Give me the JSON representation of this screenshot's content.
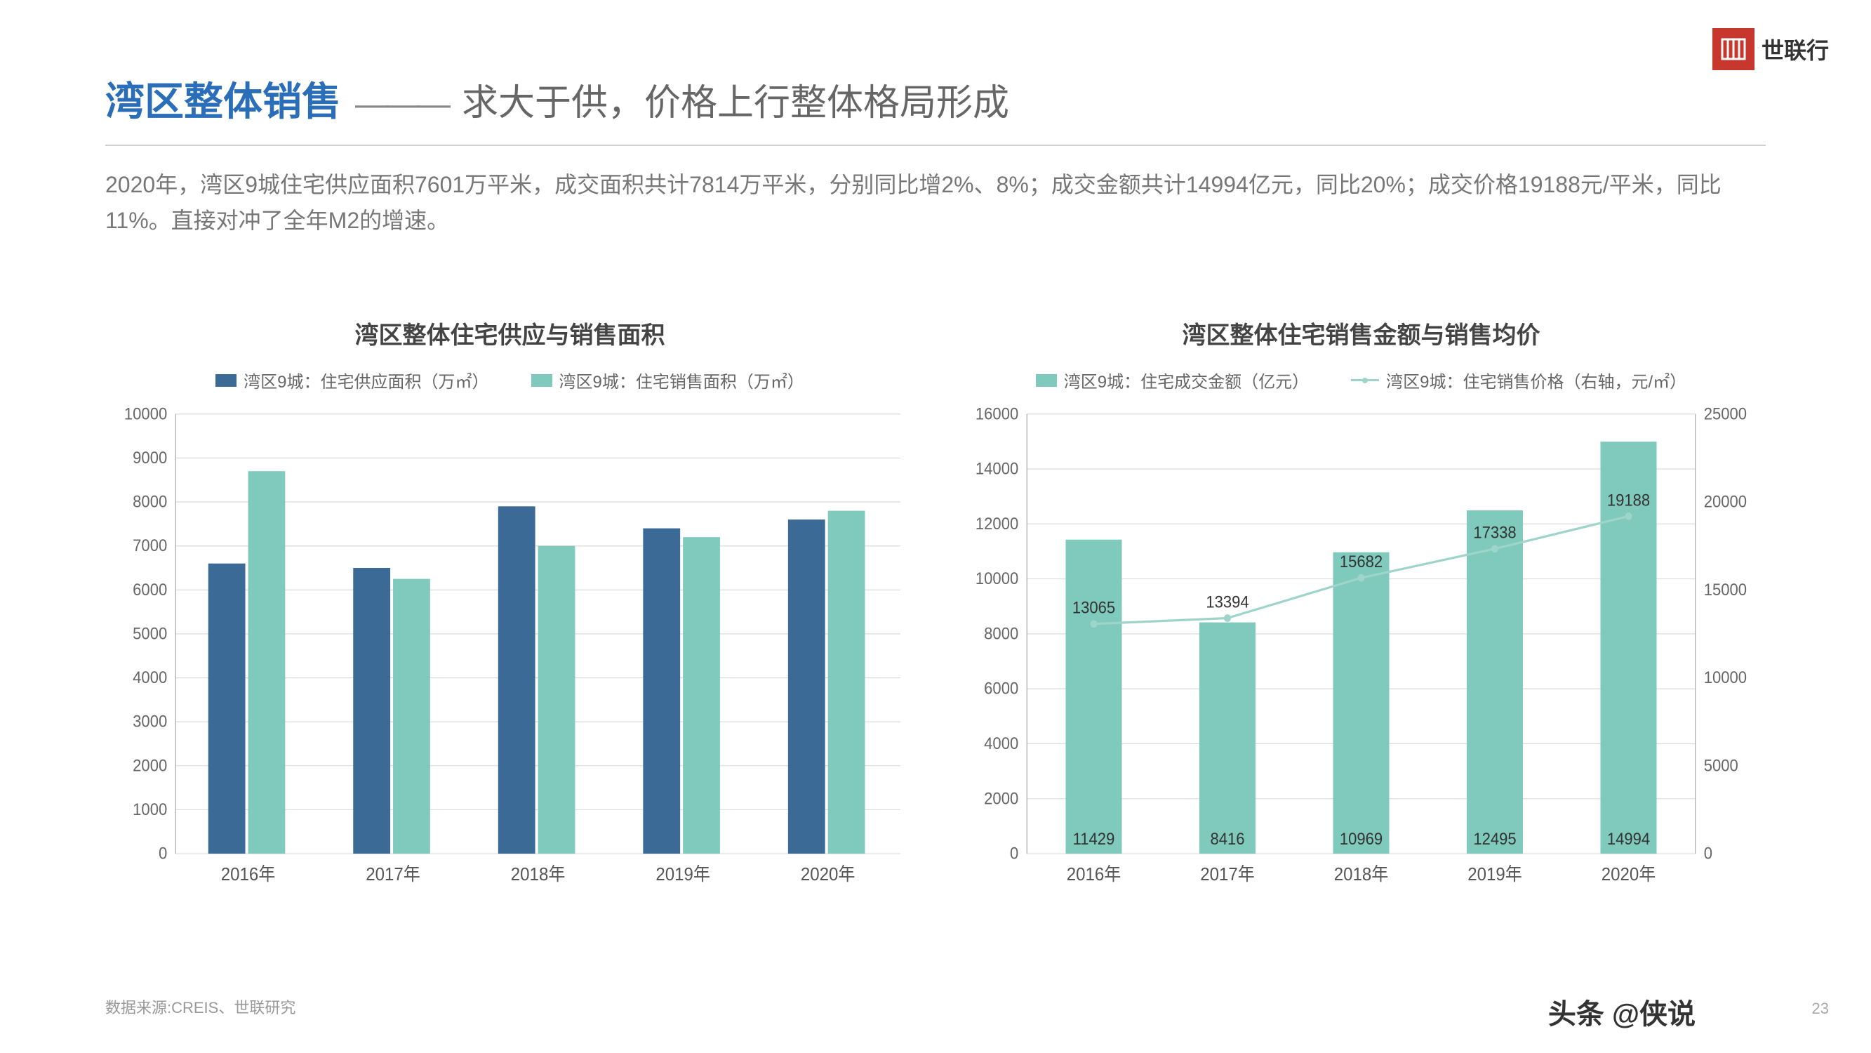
{
  "logo_text": "世联行",
  "title_main": "湾区整体销售",
  "title_sub": "求大于供，价格上行整体格局形成",
  "description": "2020年，湾区9城住宅供应面积7601万平米，成交面积共计7814万平米，分别同比增2%、8%；成交金额共计14994亿元，同比20%；成交价格19188元/平米，同比11%。直接对冲了全年M2的增速。",
  "footer_source": "数据来源:CREIS、世联研究",
  "page_number": "23",
  "watermark": "头条 @侠说",
  "colors": {
    "primary_blue": "#2a6db8",
    "bar_dark": "#3a6a95",
    "bar_teal": "#7fc9bd",
    "line_teal": "#9fd4ca",
    "grid": "#d8d8d8",
    "text_muted": "#666666",
    "logo_red": "#c8372d"
  },
  "chart_left": {
    "title": "湾区整体住宅供应与销售面积",
    "type": "grouped-bar",
    "legend": [
      {
        "label": "湾区9城：住宅供应面积（万㎡）",
        "color": "#3a6a95"
      },
      {
        "label": "湾区9城：住宅销售面积（万㎡）",
        "color": "#7fc9bd"
      }
    ],
    "categories": [
      "2016年",
      "2017年",
      "2018年",
      "2019年",
      "2020年"
    ],
    "series": [
      {
        "name": "supply",
        "color": "#3a6a95",
        "values": [
          6600,
          6500,
          7900,
          7400,
          7600
        ]
      },
      {
        "name": "sales",
        "color": "#7fc9bd",
        "values": [
          8700,
          6250,
          7000,
          7200,
          7800
        ]
      }
    ],
    "y_axis": {
      "min": 0,
      "max": 10000,
      "step": 1000
    },
    "bar_group_width": 0.55,
    "background": "#ffffff",
    "grid_color": "#d8d8d8",
    "label_fontsize": 22
  },
  "chart_right": {
    "title": "湾区整体住宅销售金额与销售均价",
    "type": "bar-line-dual-axis",
    "legend": [
      {
        "label": "湾区9城：住宅成交金额（亿元）",
        "color": "#7fc9bd",
        "kind": "bar"
      },
      {
        "label": "湾区9城：住宅销售价格（右轴，元/㎡）",
        "color": "#9fd4ca",
        "kind": "line"
      }
    ],
    "categories": [
      "2016年",
      "2017年",
      "2018年",
      "2019年",
      "2020年"
    ],
    "bar_series": {
      "name": "amount",
      "color": "#7fc9bd",
      "values": [
        11429,
        8416,
        10969,
        12495,
        14994
      ]
    },
    "line_series": {
      "name": "price",
      "color": "#9fd4ca",
      "values": [
        13065,
        13394,
        15682,
        17338,
        19188
      ]
    },
    "y_left": {
      "min": 0,
      "max": 16000,
      "step": 2000
    },
    "y_right": {
      "min": 0,
      "max": 25000,
      "step": 5000
    },
    "bar_width": 0.42,
    "line_width": 3,
    "background": "#ffffff",
    "grid_color": "#d8d8d8",
    "label_fontsize": 22
  }
}
